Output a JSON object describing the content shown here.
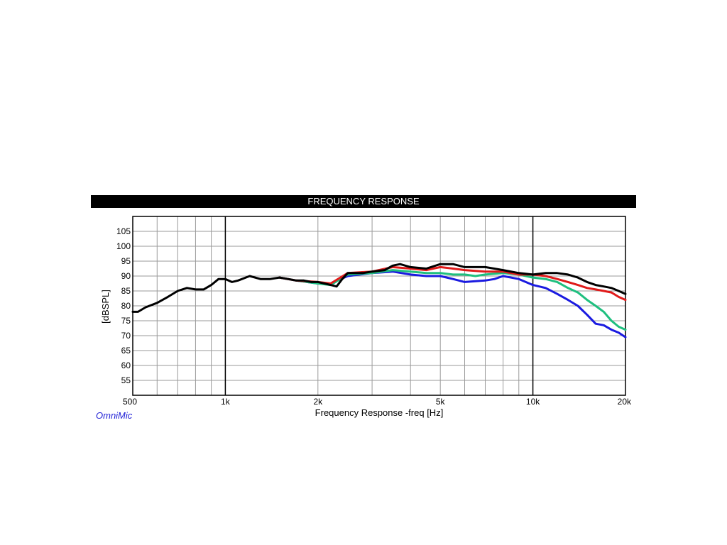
{
  "chart_data": {
    "type": "line",
    "title": "FREQUENCY RESPONSE",
    "xlabel": "Frequency Response -freq [Hz]",
    "ylabel": "[dBSPL]",
    "brand": "OmniMic",
    "xscale": "log",
    "xlim": [
      500,
      20000
    ],
    "ylim": [
      50,
      110
    ],
    "grid": true,
    "x_ticks": [
      {
        "value": 500,
        "label": "500"
      },
      {
        "value": 1000,
        "label": "1k"
      },
      {
        "value": 2000,
        "label": "2k"
      },
      {
        "value": 5000,
        "label": "5k"
      },
      {
        "value": 10000,
        "label": "10k"
      },
      {
        "value": 20000,
        "label": "20k"
      }
    ],
    "y_ticks": [
      55,
      60,
      65,
      70,
      75,
      80,
      85,
      90,
      95,
      100,
      105
    ],
    "colors": {
      "black": "#000000",
      "red": "#e01a1a",
      "green": "#1fbf7f",
      "blue": "#1a1ae0"
    },
    "series": [
      {
        "color": "blue",
        "points": [
          [
            1500,
            89.5
          ],
          [
            1700,
            88.5
          ],
          [
            2000,
            87.5
          ],
          [
            2200,
            87.5
          ],
          [
            2500,
            90
          ],
          [
            3000,
            91
          ],
          [
            3500,
            91.5
          ],
          [
            4000,
            90.5
          ],
          [
            4500,
            90
          ],
          [
            5000,
            90
          ],
          [
            5500,
            89
          ],
          [
            6000,
            88
          ],
          [
            7000,
            88.5
          ],
          [
            7500,
            89
          ],
          [
            8000,
            90
          ],
          [
            9000,
            89
          ],
          [
            10000,
            87
          ],
          [
            11000,
            86
          ],
          [
            12000,
            84
          ],
          [
            13000,
            82
          ],
          [
            14000,
            80
          ],
          [
            15000,
            77
          ],
          [
            16000,
            74
          ],
          [
            17000,
            73.5
          ],
          [
            18000,
            72
          ],
          [
            19000,
            71
          ],
          [
            20000,
            69.5
          ]
        ]
      },
      {
        "color": "green",
        "points": [
          [
            1500,
            89.5
          ],
          [
            1700,
            88.5
          ],
          [
            2000,
            87.5
          ],
          [
            2200,
            87
          ],
          [
            2500,
            90.5
          ],
          [
            3000,
            91
          ],
          [
            3500,
            92
          ],
          [
            4000,
            91.5
          ],
          [
            4500,
            91
          ],
          [
            5000,
            91
          ],
          [
            5500,
            90.5
          ],
          [
            6000,
            90.5
          ],
          [
            6500,
            90
          ],
          [
            7000,
            90.5
          ],
          [
            8000,
            91
          ],
          [
            9000,
            90.5
          ],
          [
            10000,
            89.5
          ],
          [
            11000,
            89
          ],
          [
            12000,
            88
          ],
          [
            13000,
            86
          ],
          [
            14000,
            84.5
          ],
          [
            15000,
            82
          ],
          [
            16000,
            80
          ],
          [
            17000,
            78
          ],
          [
            18000,
            75
          ],
          [
            19000,
            73
          ],
          [
            20000,
            72
          ]
        ]
      },
      {
        "color": "red",
        "points": [
          [
            1500,
            89.5
          ],
          [
            1700,
            88.5
          ],
          [
            2000,
            88
          ],
          [
            2200,
            87.5
          ],
          [
            2500,
            91
          ],
          [
            3000,
            91.5
          ],
          [
            3500,
            93
          ],
          [
            4000,
            92.5
          ],
          [
            4500,
            92
          ],
          [
            5000,
            93
          ],
          [
            5500,
            92.5
          ],
          [
            6000,
            92
          ],
          [
            7000,
            91.5
          ],
          [
            8000,
            91.5
          ],
          [
            9000,
            90.5
          ],
          [
            10000,
            90.5
          ],
          [
            11000,
            90
          ],
          [
            12000,
            89
          ],
          [
            13000,
            88
          ],
          [
            14000,
            87
          ],
          [
            15000,
            86
          ],
          [
            16000,
            85.5
          ],
          [
            17000,
            85
          ],
          [
            18000,
            84.5
          ],
          [
            19000,
            83
          ],
          [
            20000,
            82
          ]
        ]
      },
      {
        "color": "black",
        "points": [
          [
            500,
            78
          ],
          [
            520,
            78
          ],
          [
            550,
            79.5
          ],
          [
            600,
            81
          ],
          [
            650,
            83
          ],
          [
            700,
            85
          ],
          [
            750,
            86
          ],
          [
            800,
            85.5
          ],
          [
            850,
            85.5
          ],
          [
            900,
            87
          ],
          [
            950,
            89
          ],
          [
            1000,
            89
          ],
          [
            1050,
            88
          ],
          [
            1100,
            88.5
          ],
          [
            1200,
            90
          ],
          [
            1300,
            89
          ],
          [
            1400,
            89
          ],
          [
            1500,
            89.5
          ],
          [
            1600,
            89
          ],
          [
            1700,
            88.5
          ],
          [
            1800,
            88.5
          ],
          [
            1900,
            88
          ],
          [
            2000,
            88
          ],
          [
            2100,
            87.5
          ],
          [
            2200,
            87
          ],
          [
            2300,
            86.5
          ],
          [
            2400,
            89
          ],
          [
            2500,
            91
          ],
          [
            2800,
            91
          ],
          [
            3000,
            91.5
          ],
          [
            3300,
            92
          ],
          [
            3500,
            93.5
          ],
          [
            3700,
            94
          ],
          [
            4000,
            93
          ],
          [
            4500,
            92.5
          ],
          [
            5000,
            94
          ],
          [
            5500,
            94
          ],
          [
            6000,
            93
          ],
          [
            7000,
            93
          ],
          [
            8000,
            92
          ],
          [
            9000,
            91
          ],
          [
            10000,
            90.5
          ],
          [
            11000,
            91
          ],
          [
            12000,
            91
          ],
          [
            13000,
            90.5
          ],
          [
            14000,
            89.5
          ],
          [
            15000,
            88
          ],
          [
            16000,
            87
          ],
          [
            17000,
            86.5
          ],
          [
            18000,
            86
          ],
          [
            19000,
            85
          ],
          [
            20000,
            84
          ]
        ]
      }
    ]
  }
}
